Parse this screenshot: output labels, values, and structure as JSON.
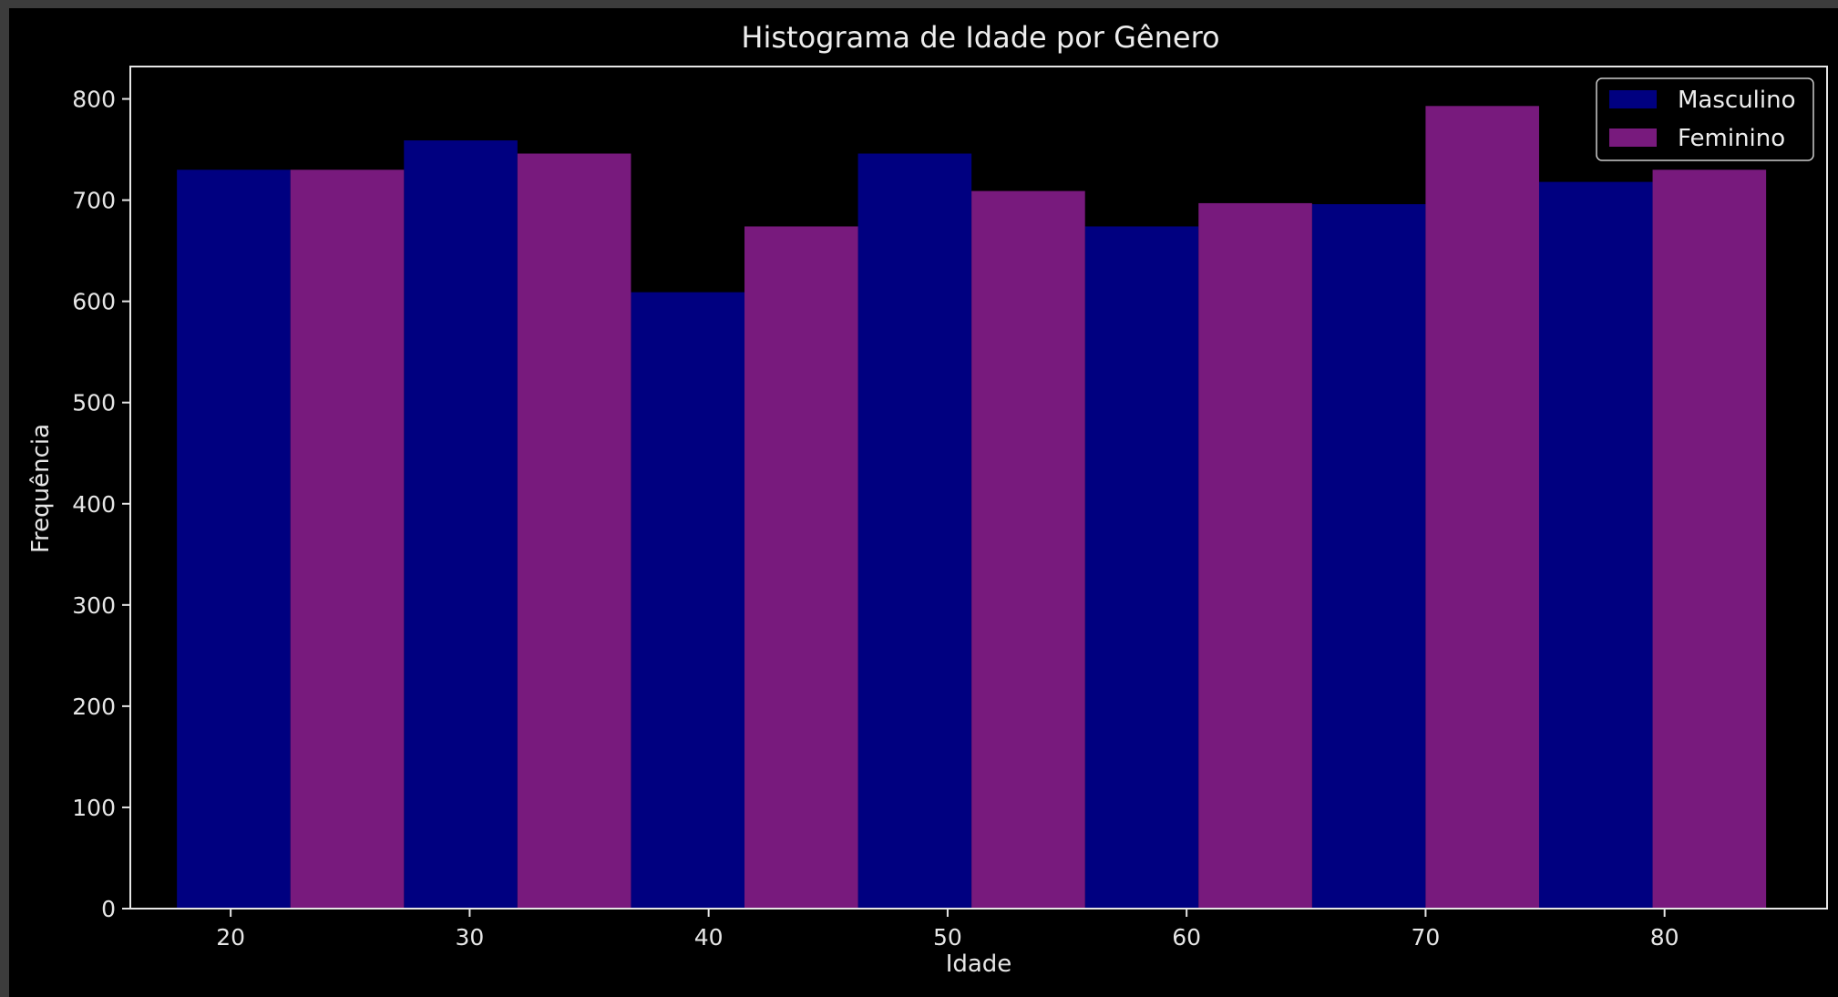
{
  "chart_data": {
    "type": "bar",
    "title": "Histograma de Idade por Gênero",
    "xlabel": "Idade",
    "ylabel": "Frequência",
    "x": [
      22.5,
      32,
      41.5,
      51,
      60.5,
      70,
      79.5
    ],
    "xticks": [
      20,
      30,
      40,
      50,
      60,
      70,
      80
    ],
    "yticks": [
      0,
      100,
      200,
      300,
      400,
      500,
      600,
      700,
      800
    ],
    "xlim": [
      15.8,
      86.8
    ],
    "ylim": [
      0,
      832
    ],
    "bin_width": 9.5,
    "legend_position": "top-right",
    "grid": false,
    "series": [
      {
        "name": "Masculino",
        "color": "#000080",
        "values": [
          730,
          759,
          609,
          746,
          674,
          696,
          718
        ]
      },
      {
        "name": "Feminino",
        "color": "#781a7d",
        "values": [
          730,
          746,
          674,
          709,
          697,
          793,
          730
        ]
      }
    ]
  }
}
